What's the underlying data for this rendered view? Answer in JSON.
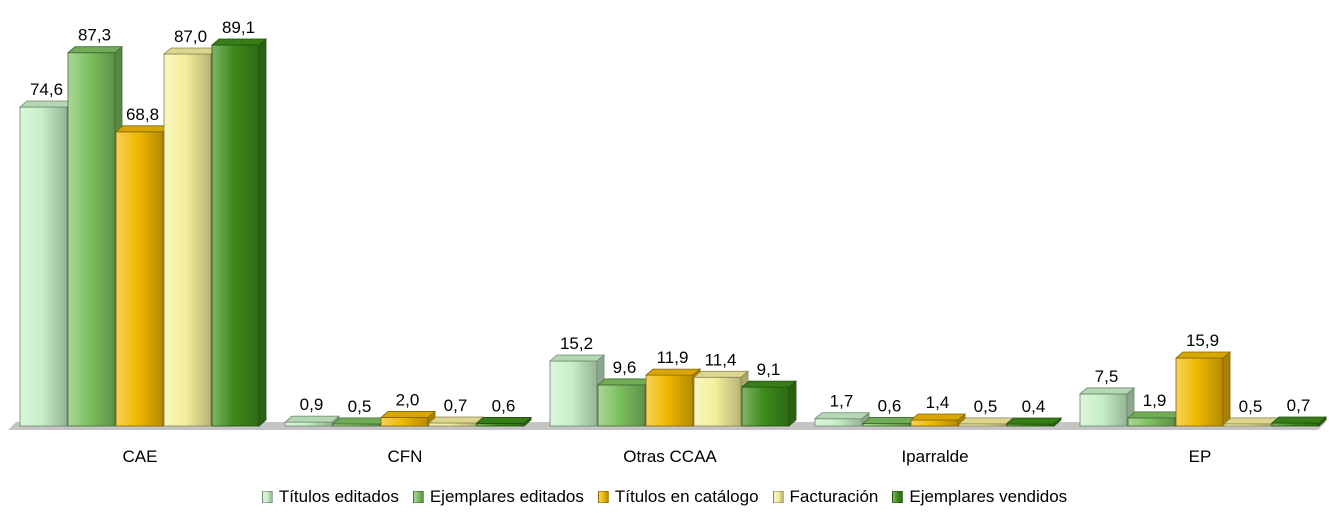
{
  "chart_data": {
    "type": "bar",
    "categories": [
      "CAE",
      "CFN",
      "Otras CCAA",
      "Iparralde",
      "EP"
    ],
    "series": [
      {
        "name": "Títulos editados",
        "color": "#c8f0c8",
        "values": [
          74.6,
          0.9,
          15.2,
          1.7,
          7.5
        ],
        "labels": [
          "74,6",
          "0,9",
          "15,2",
          "1,7",
          "7,5"
        ]
      },
      {
        "name": "Ejemplares editados",
        "color": "#7dc060",
        "values": [
          87.3,
          0.5,
          9.6,
          0.6,
          1.9
        ],
        "labels": [
          "87,3",
          "0,5",
          "9,6",
          "0,6",
          "1,9"
        ]
      },
      {
        "name": "Títulos en catálogo",
        "color": "#f0b800",
        "values": [
          68.8,
          2.0,
          11.9,
          1.4,
          15.9
        ],
        "labels": [
          "68,8",
          "2,0",
          "11,9",
          "1,4",
          "15,9"
        ]
      },
      {
        "name": "Facturación",
        "color": "#f4ef9c",
        "values": [
          87.0,
          0.7,
          11.4,
          0.5,
          0.5
        ],
        "labels": [
          "87,0",
          "0,7",
          "11,4",
          "0,5",
          "0,5"
        ]
      },
      {
        "name": "Ejemplares vendidos",
        "color": "#3d8c1a",
        "values": [
          89.1,
          0.6,
          9.1,
          0.4,
          0.7
        ],
        "labels": [
          "89,1",
          "0,6",
          "9,1",
          "0,4",
          "0,7"
        ]
      }
    ],
    "ylim": [
      0,
      89.1
    ],
    "grid": false,
    "legend_position": "bottom"
  }
}
